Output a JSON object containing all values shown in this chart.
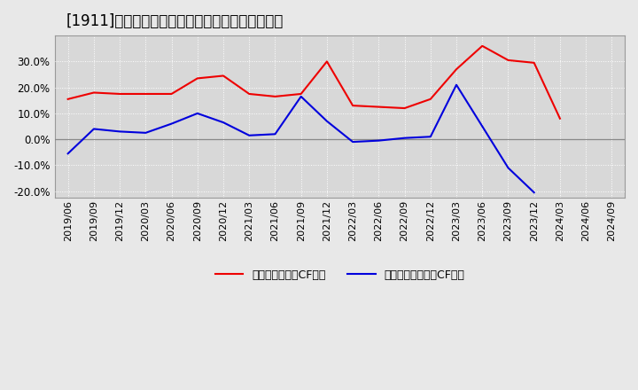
{
  "title": "[1911]　有利子負債キャッシュフロー比率の推移",
  "x_labels": [
    "2019/06",
    "2019/09",
    "2019/12",
    "2020/03",
    "2020/06",
    "2020/09",
    "2020/12",
    "2021/03",
    "2021/06",
    "2021/09",
    "2021/12",
    "2022/03",
    "2022/06",
    "2022/09",
    "2022/12",
    "2023/03",
    "2023/06",
    "2023/09",
    "2023/12",
    "2024/03",
    "2024/06",
    "2024/09"
  ],
  "red_values": [
    0.155,
    0.18,
    0.175,
    0.175,
    0.175,
    0.235,
    0.245,
    0.175,
    0.165,
    0.175,
    0.3,
    0.13,
    0.125,
    0.12,
    0.155,
    0.27,
    0.36,
    0.305,
    0.295,
    0.08,
    null,
    null
  ],
  "blue_values": [
    -0.055,
    0.04,
    0.03,
    0.025,
    0.06,
    0.1,
    0.065,
    0.015,
    0.02,
    0.165,
    0.07,
    -0.01,
    -0.005,
    0.005,
    0.01,
    0.21,
    0.05,
    -0.11,
    -0.205,
    null,
    null,
    null
  ],
  "red_label": "有利子負債営業CF比率",
  "blue_label": "有利子負債フリーCF比率",
  "ylim": [
    -0.225,
    0.4
  ],
  "yticks": [
    -0.2,
    -0.1,
    0.0,
    0.1,
    0.2,
    0.3
  ],
  "bg_color": "#e8e8e8",
  "plot_bg_color": "#d8d8d8",
  "red_color": "#ee0000",
  "blue_color": "#0000dd",
  "grid_color": "#ffffff",
  "zero_line_color": "#888888",
  "title_fontsize": 12,
  "legend_fontsize": 9,
  "tick_fontsize": 8,
  "ytick_fontsize": 8.5
}
